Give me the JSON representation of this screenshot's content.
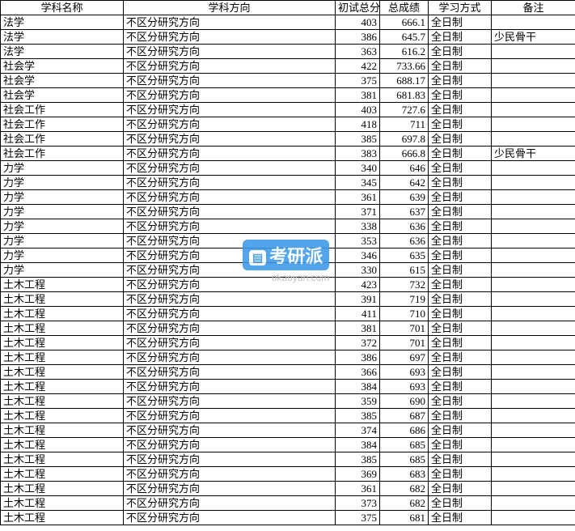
{
  "headers": {
    "subject": "学科名称",
    "direction": "学科方向",
    "score1": "初试总分",
    "score2": "总成绩",
    "mode": "学习方式",
    "remark": "备注"
  },
  "watermark": {
    "label": "考研派",
    "icon": "▤",
    "url": "okaoyan.com"
  },
  "rows": [
    {
      "subject": "法学",
      "direction": "不区分研究方向",
      "score1": "403",
      "score2": "666.1",
      "mode": "全日制",
      "remark": ""
    },
    {
      "subject": "法学",
      "direction": "不区分研究方向",
      "score1": "386",
      "score2": "645.7",
      "mode": "全日制",
      "remark": "少民骨干"
    },
    {
      "subject": "法学",
      "direction": "不区分研究方向",
      "score1": "363",
      "score2": "616.2",
      "mode": "全日制",
      "remark": ""
    },
    {
      "subject": "社会学",
      "direction": "不区分研究方向",
      "score1": "422",
      "score2": "733.66",
      "mode": "全日制",
      "remark": ""
    },
    {
      "subject": "社会学",
      "direction": "不区分研究方向",
      "score1": "375",
      "score2": "688.17",
      "mode": "全日制",
      "remark": ""
    },
    {
      "subject": "社会学",
      "direction": "不区分研究方向",
      "score1": "381",
      "score2": "681.83",
      "mode": "全日制",
      "remark": ""
    },
    {
      "subject": "社会工作",
      "direction": "不区分研究方向",
      "score1": "403",
      "score2": "727.6",
      "mode": "全日制",
      "remark": ""
    },
    {
      "subject": "社会工作",
      "direction": "不区分研究方向",
      "score1": "418",
      "score2": "711",
      "mode": "全日制",
      "remark": ""
    },
    {
      "subject": "社会工作",
      "direction": "不区分研究方向",
      "score1": "385",
      "score2": "697.8",
      "mode": "全日制",
      "remark": ""
    },
    {
      "subject": "社会工作",
      "direction": "不区分研究方向",
      "score1": "383",
      "score2": "666.8",
      "mode": "全日制",
      "remark": "少民骨干"
    },
    {
      "subject": "力学",
      "direction": "不区分研究方向",
      "score1": "340",
      "score2": "646",
      "mode": "全日制",
      "remark": ""
    },
    {
      "subject": "力学",
      "direction": "不区分研究方向",
      "score1": "345",
      "score2": "642",
      "mode": "全日制",
      "remark": ""
    },
    {
      "subject": "力学",
      "direction": "不区分研究方向",
      "score1": "361",
      "score2": "639",
      "mode": "全日制",
      "remark": ""
    },
    {
      "subject": "力学",
      "direction": "不区分研究方向",
      "score1": "371",
      "score2": "637",
      "mode": "全日制",
      "remark": ""
    },
    {
      "subject": "力学",
      "direction": "不区分研究方向",
      "score1": "338",
      "score2": "636",
      "mode": "全日制",
      "remark": ""
    },
    {
      "subject": "力学",
      "direction": "不区分研究方向",
      "score1": "353",
      "score2": "636",
      "mode": "全日制",
      "remark": ""
    },
    {
      "subject": "力学",
      "direction": "不区分研究方向",
      "score1": "346",
      "score2": "635",
      "mode": "全日制",
      "remark": ""
    },
    {
      "subject": "力学",
      "direction": "不区分研究方向",
      "score1": "330",
      "score2": "615",
      "mode": "全日制",
      "remark": ""
    },
    {
      "subject": "土木工程",
      "direction": "不区分研究方向",
      "score1": "423",
      "score2": "732",
      "mode": "全日制",
      "remark": ""
    },
    {
      "subject": "土木工程",
      "direction": "不区分研究方向",
      "score1": "391",
      "score2": "719",
      "mode": "全日制",
      "remark": ""
    },
    {
      "subject": "土木工程",
      "direction": "不区分研究方向",
      "score1": "411",
      "score2": "710",
      "mode": "全日制",
      "remark": ""
    },
    {
      "subject": "土木工程",
      "direction": "不区分研究方向",
      "score1": "381",
      "score2": "701",
      "mode": "全日制",
      "remark": ""
    },
    {
      "subject": "土木工程",
      "direction": "不区分研究方向",
      "score1": "372",
      "score2": "701",
      "mode": "全日制",
      "remark": ""
    },
    {
      "subject": "土木工程",
      "direction": "不区分研究方向",
      "score1": "386",
      "score2": "697",
      "mode": "全日制",
      "remark": ""
    },
    {
      "subject": "土木工程",
      "direction": "不区分研究方向",
      "score1": "366",
      "score2": "693",
      "mode": "全日制",
      "remark": ""
    },
    {
      "subject": "土木工程",
      "direction": "不区分研究方向",
      "score1": "384",
      "score2": "693",
      "mode": "全日制",
      "remark": ""
    },
    {
      "subject": "土木工程",
      "direction": "不区分研究方向",
      "score1": "359",
      "score2": "690",
      "mode": "全日制",
      "remark": ""
    },
    {
      "subject": "土木工程",
      "direction": "不区分研究方向",
      "score1": "385",
      "score2": "687",
      "mode": "全日制",
      "remark": ""
    },
    {
      "subject": "土木工程",
      "direction": "不区分研究方向",
      "score1": "374",
      "score2": "686",
      "mode": "全日制",
      "remark": ""
    },
    {
      "subject": "土木工程",
      "direction": "不区分研究方向",
      "score1": "384",
      "score2": "685",
      "mode": "全日制",
      "remark": ""
    },
    {
      "subject": "土木工程",
      "direction": "不区分研究方向",
      "score1": "385",
      "score2": "685",
      "mode": "全日制",
      "remark": ""
    },
    {
      "subject": "土木工程",
      "direction": "不区分研究方向",
      "score1": "369",
      "score2": "683",
      "mode": "全日制",
      "remark": ""
    },
    {
      "subject": "土木工程",
      "direction": "不区分研究方向",
      "score1": "361",
      "score2": "682",
      "mode": "全日制",
      "remark": ""
    },
    {
      "subject": "土木工程",
      "direction": "不区分研究方向",
      "score1": "373",
      "score2": "682",
      "mode": "全日制",
      "remark": ""
    },
    {
      "subject": "土木工程",
      "direction": "不区分研究方向",
      "score1": "375",
      "score2": "681",
      "mode": "全日制",
      "remark": ""
    }
  ]
}
